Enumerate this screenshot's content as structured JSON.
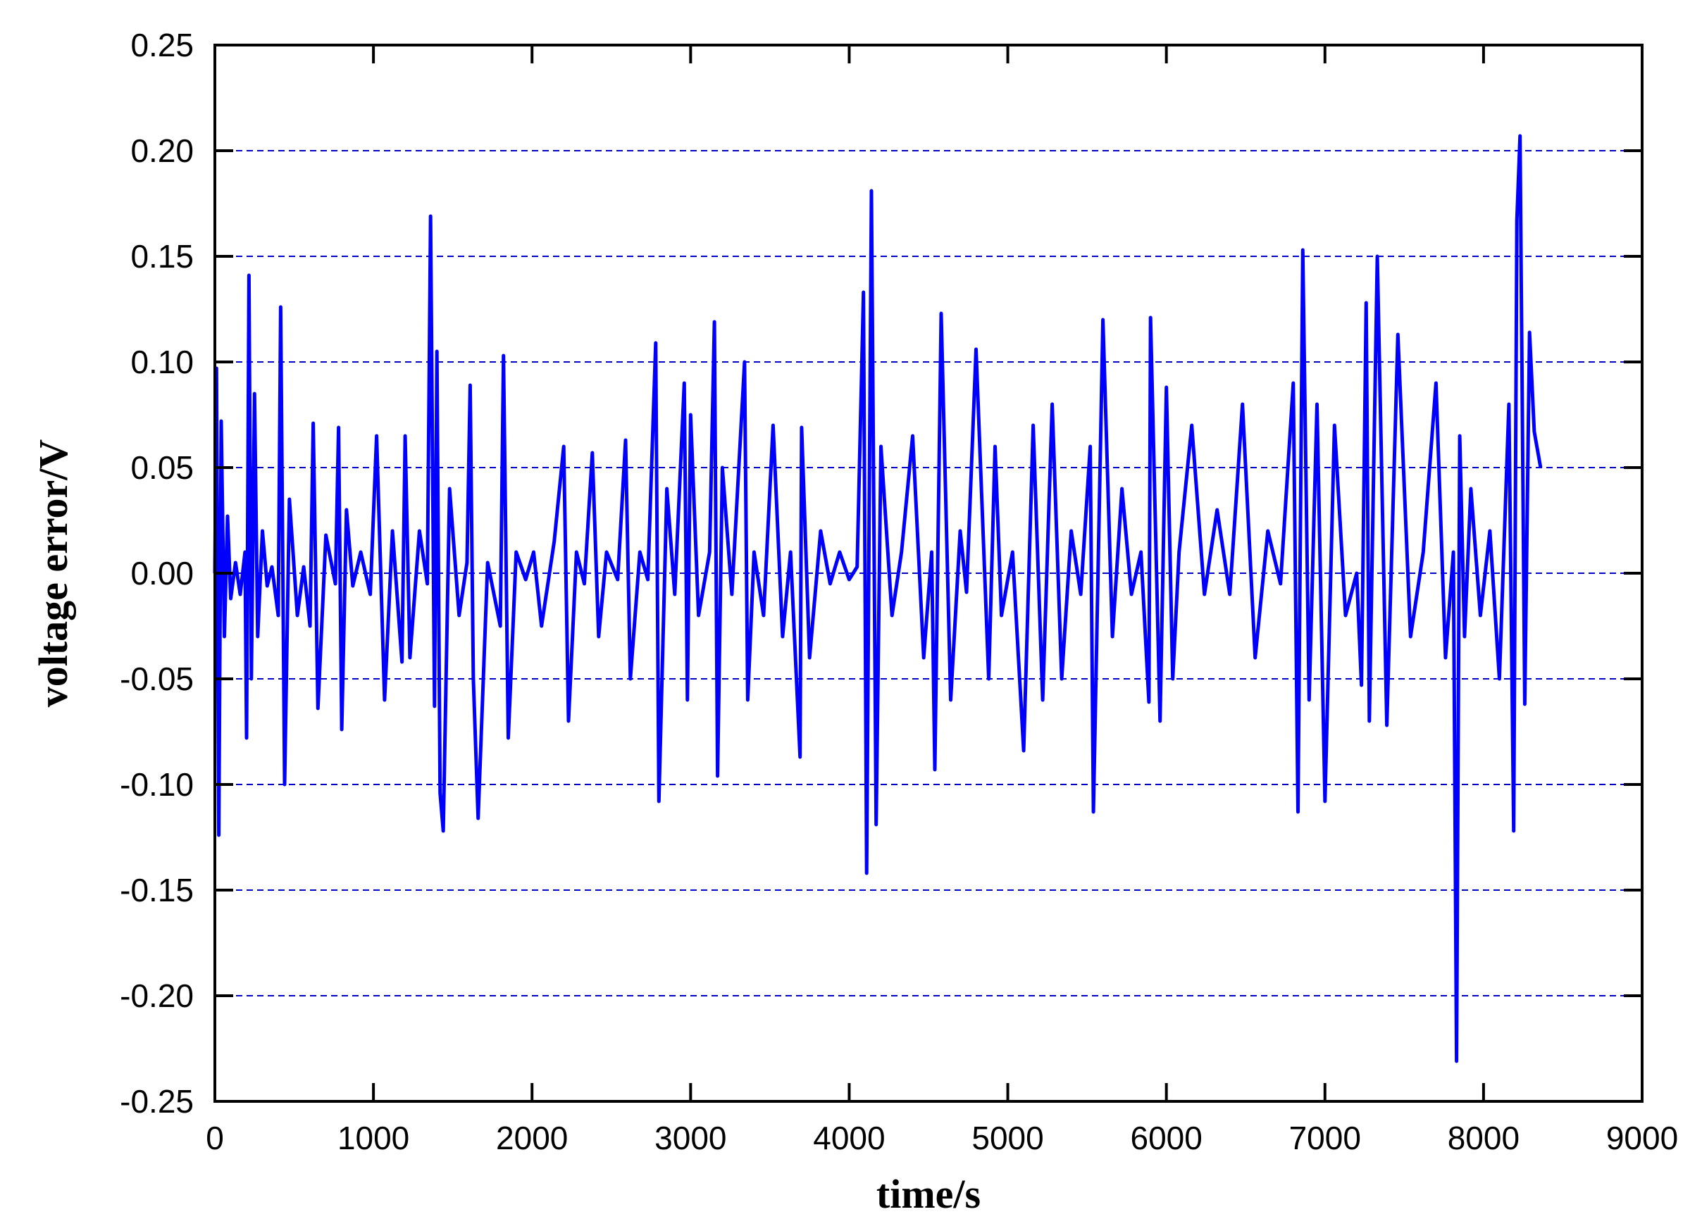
{
  "chart_data": {
    "type": "line",
    "title": "",
    "xlabel": "time/s",
    "ylabel": "voltage error/V",
    "xlim": [
      0,
      9000
    ],
    "ylim": [
      -0.25,
      0.25
    ],
    "x_ticks": [
      0,
      1000,
      2000,
      3000,
      4000,
      5000,
      6000,
      7000,
      8000,
      9000
    ],
    "x_tick_labels": [
      "0",
      "1000",
      "2000",
      "3000",
      "4000",
      "5000",
      "6000",
      "7000",
      "8000",
      "9000"
    ],
    "y_ticks": [
      0.25,
      0.2,
      0.15,
      0.1,
      0.05,
      0.0,
      -0.05,
      -0.1,
      -0.15,
      -0.2,
      -0.25
    ],
    "y_tick_labels": [
      "0.25",
      "0.20",
      "0.15",
      "0.10",
      "0.05",
      "0.00",
      "-0.05",
      "-0.10",
      "-0.15",
      "-0.20",
      "-0.25"
    ],
    "grid": "horizontal dashed lines at -0.20 to 0.20",
    "colors": {
      "series": "#0000ff",
      "grid": "#0000cc",
      "axes": "#000000"
    },
    "series": [
      {
        "x": [
          0,
          10,
          25,
          40,
          60,
          80,
          100,
          130,
          160,
          190,
          200,
          215,
          230,
          250,
          270,
          300,
          330,
          360,
          400,
          415,
          440,
          470,
          520,
          560,
          600,
          620,
          650,
          700,
          760,
          780,
          800,
          830,
          870,
          920,
          980,
          1020,
          1070,
          1120,
          1180,
          1200,
          1230,
          1290,
          1340,
          1360,
          1385,
          1400,
          1420,
          1440,
          1480,
          1540,
          1590,
          1610,
          1630,
          1660,
          1720,
          1800,
          1820,
          1850,
          1900,
          1960,
          2010,
          2060,
          2140,
          2200,
          2230,
          2280,
          2330,
          2380,
          2420,
          2470,
          2540,
          2590,
          2620,
          2680,
          2730,
          2780,
          2800,
          2850,
          2900,
          2960,
          2980,
          3000,
          3050,
          3120,
          3150,
          3170,
          3200,
          3260,
          3340,
          3360,
          3400,
          3460,
          3520,
          3580,
          3630,
          3690,
          3700,
          3750,
          3820,
          3880,
          3940,
          4000,
          4050,
          4090,
          4110,
          4140,
          4170,
          4200,
          4270,
          4330,
          4400,
          4470,
          4520,
          4540,
          4580,
          4640,
          4700,
          4740,
          4800,
          4880,
          4920,
          4960,
          5030,
          5100,
          5160,
          5220,
          5280,
          5340,
          5400,
          5460,
          5520,
          5540,
          5600,
          5660,
          5720,
          5780,
          5840,
          5890,
          5900,
          5960,
          6000,
          6040,
          6080,
          6160,
          6240,
          6320,
          6400,
          6480,
          6560,
          6640,
          6720,
          6800,
          6830,
          6860,
          6900,
          6950,
          7000,
          7060,
          7130,
          7200,
          7230,
          7260,
          7280,
          7330,
          7390,
          7460,
          7540,
          7620,
          7700,
          7760,
          7810,
          7830,
          7850,
          7880,
          7920,
          7980,
          8040,
          8100,
          8160,
          8190,
          8210,
          8230,
          8260,
          8290,
          8320,
          8360
        ],
        "y": [
          0.0,
          0.097,
          -0.124,
          0.072,
          -0.03,
          0.027,
          -0.012,
          0.005,
          -0.01,
          0.01,
          -0.078,
          0.141,
          -0.05,
          0.085,
          -0.03,
          0.02,
          -0.006,
          0.003,
          -0.02,
          0.126,
          -0.1,
          0.035,
          -0.02,
          0.003,
          -0.025,
          0.071,
          -0.064,
          0.018,
          -0.005,
          0.069,
          -0.074,
          0.03,
          -0.006,
          0.01,
          -0.01,
          0.065,
          -0.06,
          0.02,
          -0.042,
          0.065,
          -0.04,
          0.02,
          -0.005,
          0.169,
          -0.063,
          0.105,
          -0.104,
          -0.122,
          0.04,
          -0.02,
          0.005,
          0.089,
          -0.05,
          -0.116,
          0.005,
          -0.025,
          0.103,
          -0.078,
          0.01,
          -0.003,
          0.01,
          -0.025,
          0.015,
          0.06,
          -0.07,
          0.01,
          -0.005,
          0.057,
          -0.03,
          0.01,
          -0.003,
          0.063,
          -0.05,
          0.01,
          -0.003,
          0.109,
          -0.108,
          0.04,
          -0.01,
          0.09,
          -0.06,
          0.075,
          -0.02,
          0.01,
          0.119,
          -0.096,
          0.05,
          -0.01,
          0.1,
          -0.06,
          0.01,
          -0.02,
          0.07,
          -0.03,
          0.01,
          -0.087,
          0.069,
          -0.04,
          0.02,
          -0.005,
          0.01,
          -0.003,
          0.003,
          0.133,
          -0.142,
          0.181,
          -0.119,
          0.06,
          -0.02,
          0.01,
          0.065,
          -0.04,
          0.01,
          -0.093,
          0.123,
          -0.06,
          0.02,
          -0.009,
          0.106,
          -0.05,
          0.06,
          -0.02,
          0.01,
          -0.084,
          0.07,
          -0.06,
          0.08,
          -0.05,
          0.02,
          -0.01,
          0.06,
          -0.113,
          0.12,
          -0.03,
          0.04,
          -0.01,
          0.01,
          -0.061,
          0.121,
          -0.07,
          0.088,
          -0.05,
          0.01,
          0.07,
          -0.01,
          0.03,
          -0.01,
          0.08,
          -0.04,
          0.02,
          -0.005,
          0.09,
          -0.113,
          0.153,
          -0.06,
          0.08,
          -0.108,
          0.07,
          -0.02,
          0.0,
          -0.053,
          0.128,
          -0.07,
          0.15,
          -0.072,
          0.113,
          -0.03,
          0.01,
          0.09,
          -0.04,
          0.01,
          -0.231,
          0.065,
          -0.03,
          0.04,
          -0.02,
          0.02,
          -0.05,
          0.08,
          -0.122,
          0.167,
          0.207,
          -0.062,
          0.114,
          0.067,
          0.05
        ]
      }
    ]
  }
}
